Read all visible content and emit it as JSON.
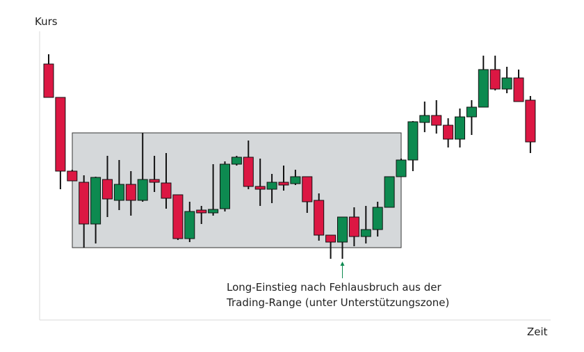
{
  "chart_data": {
    "type": "candlestick",
    "y_label": "Kurs",
    "x_label": "Zeit",
    "annotation": [
      "Long-Einstieg nach Fehlausbruch aus der",
      "Trading-Range (unter Unterstützungszone)"
    ],
    "up_color": "#0d8a50",
    "down_color": "#dc1743",
    "zone_color": "#d5d8da",
    "ylim": [
      0,
      100
    ],
    "range_zone": {
      "low": 26,
      "high": 67.25
    },
    "open": [
      92,
      80,
      53.5,
      49.5,
      34.5,
      50.5,
      43,
      48.75,
      43,
      50.5,
      49.25,
      45,
      29.25,
      39.5,
      38.5,
      40,
      56,
      58.5,
      48,
      47,
      49.5,
      49,
      51.5,
      43,
      30.5,
      28,
      37,
      30,
      32.5,
      40.5,
      51.5,
      57.5,
      71,
      73.5,
      70,
      65,
      73,
      76.5,
      90,
      83,
      87,
      79
    ],
    "high": [
      95.5,
      80,
      54,
      52,
      51.5,
      59,
      57.5,
      53.5,
      67.25,
      59,
      60,
      45,
      42.5,
      41,
      56,
      57,
      59,
      64.5,
      58,
      52.5,
      55.5,
      54,
      51.5,
      45.5,
      30.5,
      37,
      40.5,
      41,
      42.5,
      51.5,
      58,
      71.5,
      78.5,
      79,
      72.5,
      76,
      79,
      95,
      95,
      91,
      90,
      80.5
    ],
    "low": [
      80,
      47,
      50,
      26,
      27.5,
      37,
      39.5,
      37.5,
      42.5,
      46,
      40,
      28.75,
      28,
      34.5,
      37.5,
      39,
      55.5,
      47,
      41,
      42,
      46.5,
      48.5,
      38.5,
      28.5,
      22,
      22,
      26.5,
      27.5,
      30,
      41,
      51.5,
      53.5,
      67.5,
      67,
      62,
      62,
      66.5,
      76.5,
      82.5,
      81.5,
      78.5,
      60
    ],
    "close": [
      80,
      53.5,
      50,
      34.5,
      51.25,
      43.5,
      48.75,
      43,
      50.5,
      49.5,
      43.75,
      29.25,
      39,
      38.5,
      39.75,
      56,
      58.5,
      48,
      47,
      49.5,
      48.5,
      51.5,
      42.5,
      30.5,
      28,
      37,
      30,
      32.5,
      40.5,
      51.5,
      57.5,
      71.25,
      73.5,
      70,
      65,
      73,
      76.5,
      90,
      83,
      87,
      78.5,
      64
    ]
  }
}
